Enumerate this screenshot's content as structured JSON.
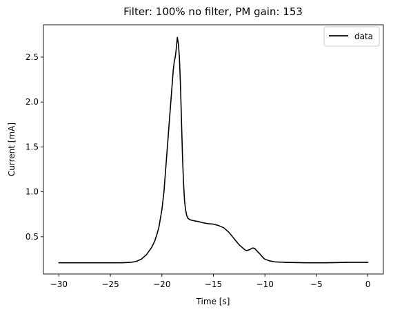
{
  "chart_data": {
    "type": "line",
    "title": "Filter: 100% no filter, PM gain: 153",
    "xlabel": "Time [s]",
    "ylabel": "Current [mA]",
    "xlim": [
      -31.5,
      1.5
    ],
    "ylim": [
      0.085,
      2.86
    ],
    "xticks": [
      -30,
      -25,
      -20,
      -15,
      -10,
      -5,
      0
    ],
    "xtick_labels": [
      "−30",
      "−25",
      "−20",
      "−15",
      "−10",
      "−5",
      "0"
    ],
    "yticks": [
      0.5,
      1.0,
      1.5,
      2.0,
      2.5
    ],
    "ytick_labels": [
      "0.5",
      "1.0",
      "1.5",
      "2.0",
      "2.5"
    ],
    "grid": false,
    "legend_position": "top-right",
    "series": [
      {
        "name": "data",
        "color": "#000000",
        "x": [
          -30,
          -28,
          -26,
          -24,
          -23,
          -22.5,
          -22,
          -21.5,
          -21,
          -20.7,
          -20.5,
          -20.3,
          -20,
          -19.8,
          -19.6,
          -19.4,
          -19.2,
          -19.0,
          -18.9,
          -18.8,
          -18.7,
          -18.6,
          -18.5,
          -18.4,
          -18.3,
          -18.2,
          -18.1,
          -18.0,
          -17.9,
          -17.8,
          -17.7,
          -17.6,
          -17.5,
          -17.3,
          -17.0,
          -16.5,
          -16.0,
          -15.5,
          -15.0,
          -14.5,
          -14.0,
          -13.5,
          -13.0,
          -12.5,
          -12.0,
          -11.8,
          -11.5,
          -11.2,
          -11.0,
          -10.8,
          -10.5,
          -10.2,
          -10.0,
          -9.5,
          -9.0,
          -8.0,
          -6.0,
          -4.0,
          -2.0,
          0.0
        ],
        "y": [
          0.21,
          0.21,
          0.21,
          0.21,
          0.215,
          0.225,
          0.25,
          0.3,
          0.38,
          0.45,
          0.52,
          0.6,
          0.8,
          1.0,
          1.3,
          1.6,
          1.9,
          2.2,
          2.35,
          2.45,
          2.5,
          2.6,
          2.72,
          2.65,
          2.5,
          2.2,
          1.8,
          1.4,
          1.1,
          0.9,
          0.8,
          0.74,
          0.71,
          0.69,
          0.68,
          0.67,
          0.655,
          0.645,
          0.64,
          0.625,
          0.6,
          0.55,
          0.48,
          0.41,
          0.36,
          0.345,
          0.355,
          0.375,
          0.37,
          0.345,
          0.31,
          0.27,
          0.25,
          0.23,
          0.22,
          0.215,
          0.21,
          0.21,
          0.215,
          0.215
        ]
      }
    ]
  }
}
